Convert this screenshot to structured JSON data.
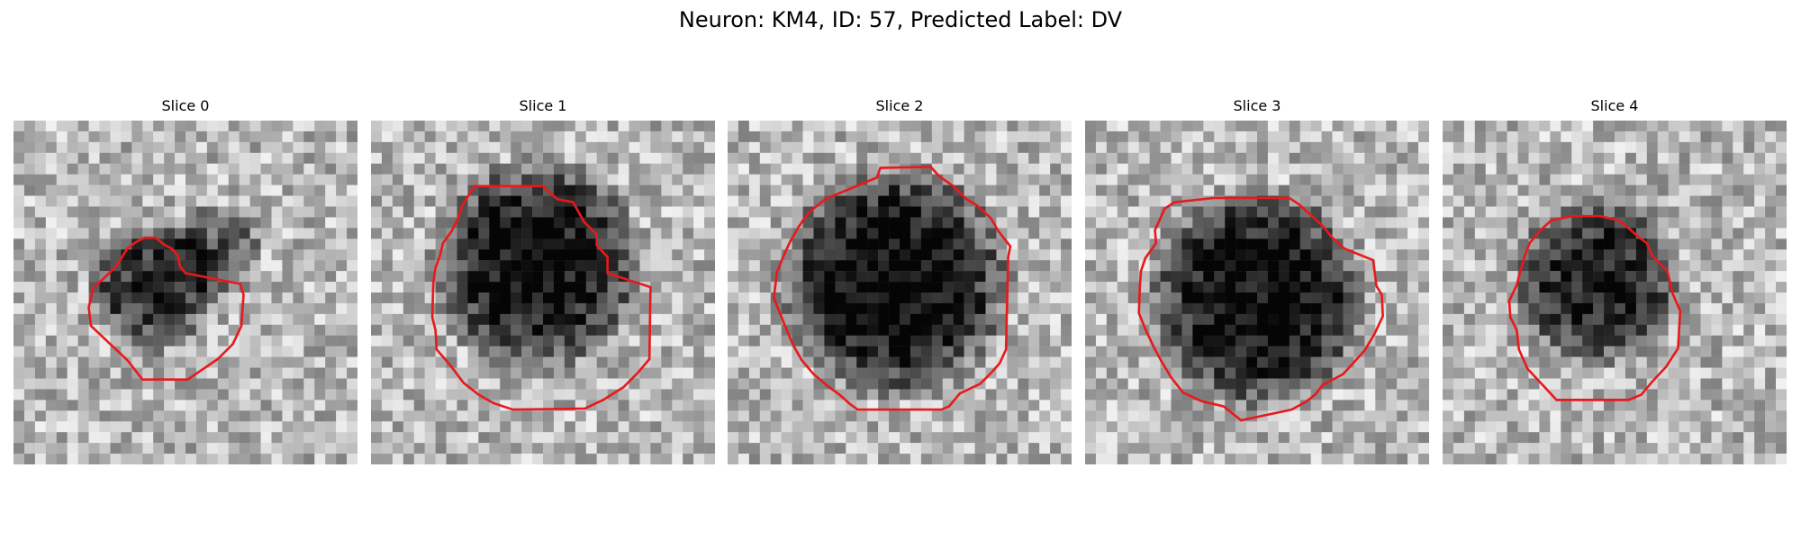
{
  "figure": {
    "title": "Neuron: KM4, ID: 57, Predicted Label: DV"
  },
  "contour_color": "#e8191c",
  "panels": [
    {
      "title": "Slice 0"
    },
    {
      "title": "Slice 1"
    },
    {
      "title": "Slice 2"
    },
    {
      "title": "Slice 3"
    },
    {
      "title": "Slice 4"
    }
  ]
}
